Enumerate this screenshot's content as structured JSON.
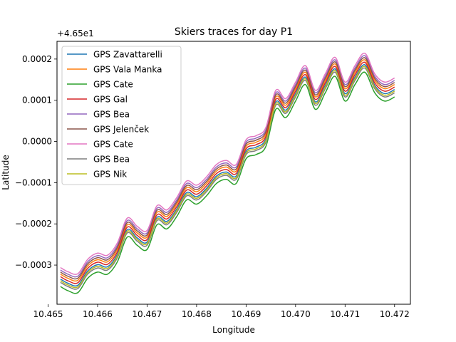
{
  "chart_data": {
    "type": "line",
    "title": "Skiers traces for day P1",
    "xlabel": "Longitude",
    "ylabel": "Latitude",
    "offset_label": "+4.65e1",
    "xlim": [
      10.46518,
      10.47232
    ],
    "ylim": [
      -0.000395,
      0.000243
    ],
    "xticks": [
      10.465,
      10.466,
      10.467,
      10.468,
      10.469,
      10.47,
      10.471,
      10.472
    ],
    "xtick_labels": [
      "10.465",
      "10.466",
      "10.467",
      "10.468",
      "10.469",
      "10.470",
      "10.471",
      "10.472"
    ],
    "yticks": [
      -0.0003,
      -0.0002,
      -0.0001,
      0.0,
      0.0001,
      0.0002
    ],
    "ytick_labels": [
      "−0.0003",
      "−0.0002",
      "−0.0001",
      "0.0000",
      "0.0001",
      "0.0002"
    ],
    "grid": false,
    "legend_position": "upper-left",
    "base_trace": {
      "x": [
        10.46525,
        10.4654,
        10.4656,
        10.4658,
        10.466,
        10.4662,
        10.4664,
        10.4666,
        10.4668,
        10.467,
        10.4672,
        10.4674,
        10.4676,
        10.4678,
        10.468,
        10.4682,
        10.4684,
        10.4686,
        10.4688,
        10.469,
        10.4692,
        10.4694,
        10.4696,
        10.4698,
        10.47,
        10.4702,
        10.4704,
        10.4706,
        10.4708,
        10.471,
        10.4712,
        10.4714,
        10.4716,
        10.4718,
        10.472
      ],
      "y": [
        -0.00033,
        -0.00034,
        -0.000345,
        -0.00031,
        -0.000295,
        -0.0003,
        -0.00027,
        -0.00021,
        -0.00023,
        -0.00024,
        -0.00018,
        -0.00019,
        -0.00016,
        -0.00012,
        -0.00013,
        -0.00011,
        -8e-05,
        -7e-05,
        -8e-05,
        -2e-05,
        -1e-05,
        1e-05,
        0.0001,
        8e-05,
        0.00012,
        0.00016,
        0.0001,
        0.00014,
        0.00018,
        0.00012,
        0.00016,
        0.00019,
        0.00014,
        0.00012,
        0.00013
      ]
    },
    "series": [
      {
        "name": "GPS Zavattarelli",
        "color": "#1f77b4",
        "offset": -4e-06
      },
      {
        "name": "GPS Vala Manka",
        "color": "#ff7f0e",
        "offset": 8e-06
      },
      {
        "name": "GPS Cate",
        "color": "#2ca02c",
        "offset": -2.2e-05
      },
      {
        "name": "GPS Gal",
        "color": "#d62728",
        "offset": 2e-06
      },
      {
        "name": "GPS Bea",
        "color": "#9467bd",
        "offset": 1.8e-05
      },
      {
        "name": "GPS Jelenček",
        "color": "#8c564b",
        "offset": 1.3e-05
      },
      {
        "name": "GPS Cate",
        "color": "#e377c2",
        "offset": 2.4e-05
      },
      {
        "name": "GPS Bea",
        "color": "#7f7f7f",
        "offset": -1.2e-05
      },
      {
        "name": "GPS Nik",
        "color": "#bcbd22",
        "offset": -8e-06
      }
    ]
  }
}
